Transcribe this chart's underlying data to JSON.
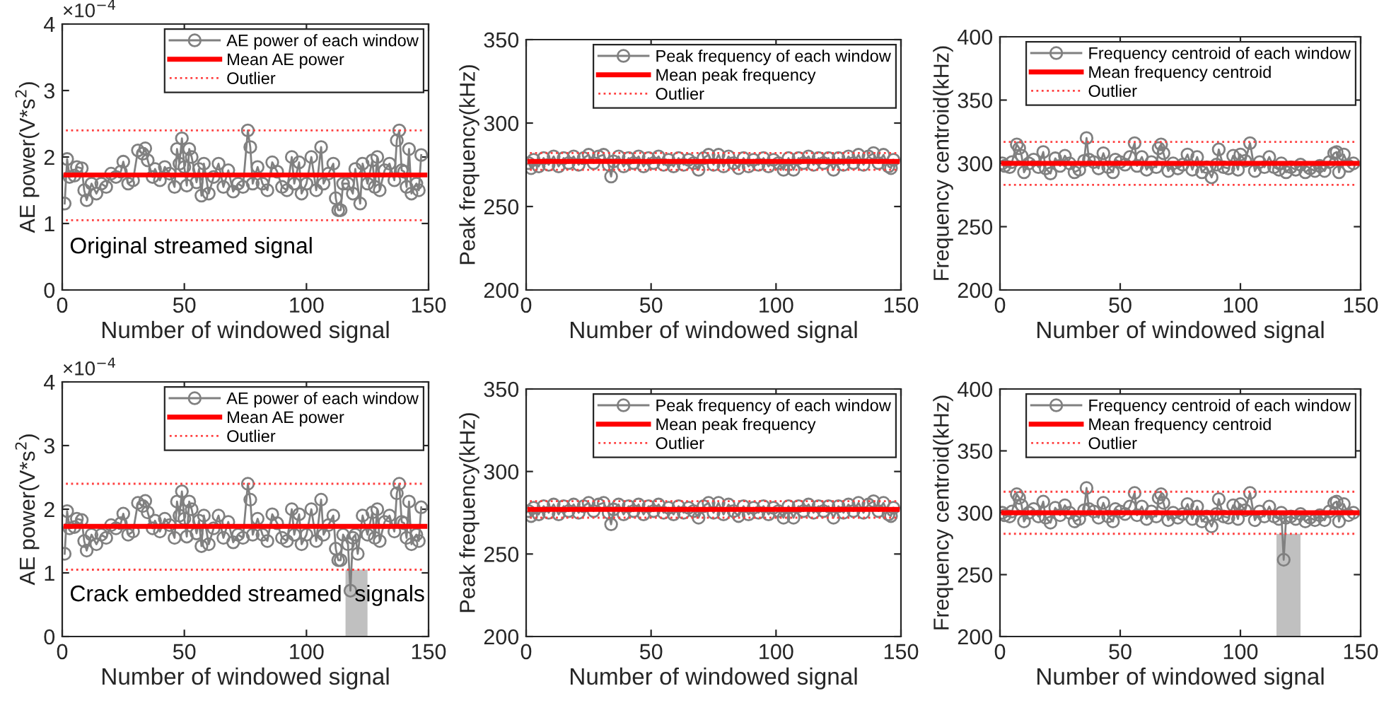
{
  "chart_data": [
    {
      "type": "line",
      "xlabel": "Number of windowed signal",
      "ylabel": "AE power(V*s$^{2}$)",
      "xlim": [
        0,
        150
      ],
      "xticks": [
        0,
        50,
        100,
        150
      ],
      "ylim": [
        0,
        4
      ],
      "yticks": [
        0,
        1,
        2,
        3,
        4
      ],
      "legend": "top right",
      "marker": "circle",
      "line_style": "solid",
      "grid": false,
      "annotations": [
        "×10$^{−4}$",
        "Original streamed signal"
      ],
      "series": [
        {
          "name": "AE power of each window",
          "color": "#808080",
          "x": [
            1,
            2,
            3,
            5,
            6,
            8,
            9,
            10,
            12,
            14,
            16,
            18,
            20,
            22,
            24,
            25,
            27,
            29,
            31,
            33,
            34,
            35,
            37,
            38,
            40,
            42,
            44,
            46,
            47,
            48,
            49,
            50,
            51,
            52,
            53,
            55,
            56,
            57,
            58,
            60,
            62,
            64,
            66,
            68,
            70,
            72,
            74,
            76,
            77,
            78,
            80,
            82,
            84,
            86,
            88,
            90,
            92,
            94,
            95,
            97,
            98,
            100,
            102,
            104,
            106,
            107,
            109,
            111,
            112,
            113,
            114,
            115,
            117,
            119,
            120,
            122,
            123,
            125,
            127,
            128,
            129,
            130,
            132,
            134,
            136,
            137,
            138,
            139,
            140,
            141,
            142,
            143,
            145,
            146,
            147
          ],
          "values": [
            1.3,
            1.97,
            1.7,
            1.72,
            1.85,
            1.83,
            1.5,
            1.35,
            1.6,
            1.45,
            1.6,
            1.55,
            1.75,
            1.7,
            1.78,
            1.93,
            1.6,
            1.65,
            2.1,
            2.05,
            2.13,
            1.95,
            1.7,
            1.82,
            1.65,
            1.85,
            1.75,
            1.55,
            2.12,
            1.9,
            2.28,
            1.85,
            1.57,
            2.12,
            2.0,
            1.62,
            1.82,
            1.42,
            1.9,
            1.45,
            1.7,
            1.9,
            1.55,
            1.8,
            1.48,
            1.6,
            1.55,
            2.4,
            2.15,
            1.6,
            1.85,
            1.6,
            1.5,
            1.92,
            1.78,
            1.55,
            1.5,
            2.0,
            1.6,
            1.92,
            1.45,
            1.6,
            2.0,
            1.5,
            2.15,
            1.6,
            1.75,
            1.9,
            1.38,
            1.2,
            1.2,
            1.6,
            1.6,
            1.45,
            1.82,
            1.3,
            1.9,
            1.6,
            1.95,
            1.55,
            2.0,
            1.5,
            1.8,
            1.9,
            1.65,
            2.25,
            2.4,
            1.8,
            1.78,
            1.55,
            2.12,
            1.45,
            1.6,
            1.5,
            2.03
          ]
        }
      ],
      "ref_lines": [
        {
          "axis": "y",
          "value": 1.73,
          "label": "Mean AE power",
          "color": "#ff0000",
          "line_style": "solid"
        },
        {
          "axis": "y",
          "value": 2.4,
          "label": "Outlier",
          "color": "#ff4040",
          "line_style": "dotted"
        },
        {
          "axis": "y",
          "value": 1.05,
          "color": "#ff4040",
          "line_style": "dotted"
        }
      ]
    },
    {
      "type": "line",
      "xlabel": "Number of windowed signal",
      "ylabel": "Peak frequency(kHz)",
      "xlim": [
        0,
        150
      ],
      "xticks": [
        0,
        50,
        100,
        150
      ],
      "ylim": [
        200,
        350
      ],
      "yticks": [
        200,
        250,
        300,
        350
      ],
      "legend": "top right",
      "marker": "circle",
      "line_style": "solid",
      "grid": false,
      "series": [
        {
          "name": "Peak frequency of each window",
          "color": "#808080",
          "x": [
            1,
            2,
            3,
            5,
            7,
            9,
            11,
            13,
            15,
            17,
            19,
            21,
            23,
            25,
            27,
            29,
            31,
            33,
            34,
            35,
            37,
            39,
            41,
            43,
            45,
            47,
            49,
            51,
            53,
            55,
            57,
            59,
            61,
            63,
            65,
            67,
            69,
            71,
            73,
            75,
            77,
            79,
            81,
            83,
            85,
            87,
            89,
            91,
            93,
            95,
            97,
            99,
            101,
            103,
            105,
            107,
            109,
            111,
            113,
            115,
            117,
            119,
            121,
            123,
            125,
            127,
            129,
            131,
            133,
            135,
            137,
            139,
            141,
            143,
            145,
            146,
            147
          ],
          "values": [
            276,
            273,
            278,
            274,
            279,
            275,
            280,
            274,
            279,
            276,
            280,
            275,
            279,
            281,
            276,
            280,
            281,
            275,
            268,
            277,
            280,
            274,
            279,
            276,
            280,
            274,
            279,
            276,
            280,
            275,
            278,
            274,
            279,
            275,
            278,
            276,
            272,
            279,
            281,
            275,
            281,
            274,
            280,
            276,
            273,
            279,
            274,
            278,
            275,
            279,
            274,
            278,
            276,
            272,
            279,
            272,
            279,
            276,
            280,
            275,
            279,
            276,
            279,
            272,
            279,
            275,
            280,
            276,
            281,
            275,
            280,
            282,
            276,
            281,
            274,
            273,
            278
          ]
        }
      ],
      "ref_lines": [
        {
          "axis": "y",
          "value": 277,
          "label": "Mean peak frequency",
          "color": "#ff0000",
          "line_style": "solid"
        },
        {
          "axis": "y",
          "value": 282,
          "label": "Outlier",
          "color": "#ff4040",
          "line_style": "dotted"
        },
        {
          "axis": "y",
          "value": 272,
          "color": "#ff4040",
          "line_style": "dotted"
        }
      ]
    },
    {
      "type": "line",
      "xlabel": "Number of windowed signal",
      "ylabel": "Frequency centroid(kHz)",
      "xlim": [
        0,
        150
      ],
      "xticks": [
        0,
        50,
        100,
        150
      ],
      "ylim": [
        200,
        400
      ],
      "yticks": [
        200,
        250,
        300,
        350,
        400
      ],
      "legend": "top right",
      "marker": "circle",
      "line_style": "solid",
      "grid": false,
      "series": [
        {
          "name": "Frequency centroid of each window",
          "color": "#808080",
          "x": [
            1,
            2,
            4,
            5,
            7,
            8,
            9,
            10,
            12,
            14,
            16,
            18,
            19,
            21,
            23,
            25,
            27,
            29,
            31,
            33,
            35,
            36,
            37,
            39,
            41,
            43,
            45,
            47,
            48,
            50,
            52,
            54,
            56,
            57,
            59,
            61,
            63,
            65,
            66,
            67,
            68,
            70,
            72,
            74,
            76,
            78,
            80,
            82,
            84,
            86,
            88,
            90,
            91,
            93,
            95,
            97,
            99,
            100,
            102,
            104,
            106,
            108,
            110,
            112,
            114,
            116,
            117,
            119,
            121,
            123,
            125,
            127,
            129,
            131,
            133,
            135,
            137,
            139,
            140,
            141,
            143,
            145,
            147
          ],
          "values": [
            300,
            298,
            297,
            301,
            315,
            312,
            306,
            293,
            300,
            303,
            297,
            309,
            296,
            292,
            304,
            298,
            306,
            300,
            293,
            295,
            302,
            320,
            303,
            301,
            296,
            308,
            297,
            293,
            303,
            301,
            299,
            305,
            316,
            298,
            305,
            295,
            301,
            297,
            312,
            315,
            308,
            294,
            300,
            296,
            299,
            307,
            295,
            305,
            293,
            297,
            289,
            299,
            311,
            297,
            296,
            306,
            295,
            307,
            302,
            316,
            294,
            301,
            297,
            305,
            297,
            295,
            300,
            293,
            297,
            295,
            299,
            293,
            296,
            294,
            298,
            294,
            301,
            308,
            309,
            293,
            307,
            298,
            300
          ]
        }
      ],
      "ref_lines": [
        {
          "axis": "y",
          "value": 300,
          "label": "Mean frequency centroid",
          "color": "#ff0000",
          "line_style": "solid"
        },
        {
          "axis": "y",
          "value": 317,
          "label": "Outlier",
          "color": "#ff4040",
          "line_style": "dotted"
        },
        {
          "axis": "y",
          "value": 283,
          "color": "#ff4040",
          "line_style": "dotted"
        }
      ]
    },
    {
      "type": "line",
      "xlabel": "Number of windowed signal",
      "ylabel": "AE power(V*s$^{2}$)",
      "xlim": [
        0,
        150
      ],
      "xticks": [
        0,
        50,
        100,
        150
      ],
      "ylim": [
        0,
        4
      ],
      "yticks": [
        0,
        1,
        2,
        3,
        4
      ],
      "legend": "top right",
      "marker": "circle",
      "line_style": "solid",
      "grid": false,
      "annotations": [
        "×10$^{−4}$",
        "Crack embedded streamed  signals"
      ],
      "bands": [
        {
          "axis": "x",
          "from": 116,
          "to": 125,
          "color": "#c0c0c0"
        }
      ],
      "series": [
        {
          "name": "AE power of each window",
          "color": "#808080",
          "x": [
            1,
            2,
            3,
            5,
            6,
            8,
            9,
            10,
            12,
            14,
            16,
            18,
            20,
            22,
            24,
            25,
            27,
            29,
            31,
            33,
            34,
            35,
            37,
            38,
            40,
            42,
            44,
            46,
            47,
            48,
            49,
            50,
            51,
            52,
            53,
            55,
            56,
            57,
            58,
            60,
            62,
            64,
            66,
            68,
            70,
            72,
            74,
            76,
            77,
            78,
            80,
            82,
            84,
            86,
            88,
            90,
            92,
            94,
            95,
            97,
            98,
            100,
            102,
            104,
            106,
            107,
            109,
            111,
            112,
            113,
            114,
            115,
            117,
            118,
            119,
            120,
            121,
            123,
            125,
            127,
            128,
            129,
            130,
            132,
            134,
            136,
            137,
            138,
            139,
            140,
            141,
            142,
            143,
            145,
            146,
            147
          ],
          "values": [
            1.3,
            1.97,
            1.7,
            1.72,
            1.85,
            1.83,
            1.5,
            1.35,
            1.6,
            1.45,
            1.6,
            1.55,
            1.75,
            1.7,
            1.78,
            1.93,
            1.6,
            1.65,
            2.1,
            2.05,
            2.13,
            1.95,
            1.7,
            1.82,
            1.65,
            1.85,
            1.75,
            1.55,
            2.12,
            1.9,
            2.28,
            1.85,
            1.57,
            2.12,
            2.0,
            1.62,
            1.82,
            1.42,
            1.9,
            1.45,
            1.7,
            1.9,
            1.55,
            1.8,
            1.48,
            1.6,
            1.55,
            2.4,
            2.15,
            1.6,
            1.85,
            1.6,
            1.5,
            1.92,
            1.78,
            1.55,
            1.5,
            2.0,
            1.6,
            1.92,
            1.45,
            1.6,
            2.0,
            1.5,
            2.15,
            1.6,
            1.75,
            1.9,
            1.38,
            1.2,
            1.2,
            1.6,
            1.45,
            0.72,
            1.55,
            1.6,
            1.3,
            1.9,
            1.6,
            1.95,
            1.55,
            2.0,
            1.5,
            1.8,
            1.9,
            1.65,
            2.25,
            2.4,
            1.8,
            1.78,
            1.55,
            2.12,
            1.45,
            1.6,
            1.5,
            2.03
          ]
        }
      ],
      "ref_lines": [
        {
          "axis": "y",
          "value": 1.73,
          "label": "Mean AE power",
          "color": "#ff0000",
          "line_style": "solid"
        },
        {
          "axis": "y",
          "value": 2.4,
          "label": "Outlier",
          "color": "#ff4040",
          "line_style": "dotted"
        },
        {
          "axis": "y",
          "value": 1.05,
          "color": "#ff4040",
          "line_style": "dotted"
        }
      ]
    },
    {
      "type": "line",
      "xlabel": "Number of windowed signal",
      "ylabel": "Peak frequency(kHz)",
      "xlim": [
        0,
        150
      ],
      "xticks": [
        0,
        50,
        100,
        150
      ],
      "ylim": [
        200,
        350
      ],
      "yticks": [
        200,
        250,
        300,
        350
      ],
      "legend": "top right",
      "marker": "circle",
      "line_style": "solid",
      "grid": false,
      "series": [
        {
          "name": "Peak frequency of each window",
          "color": "#808080",
          "x": [
            1,
            2,
            3,
            5,
            7,
            9,
            11,
            13,
            15,
            17,
            19,
            21,
            23,
            25,
            27,
            29,
            31,
            33,
            34,
            35,
            37,
            39,
            41,
            43,
            45,
            47,
            49,
            51,
            53,
            55,
            57,
            59,
            61,
            63,
            65,
            67,
            69,
            71,
            73,
            75,
            77,
            79,
            81,
            83,
            85,
            87,
            89,
            91,
            93,
            95,
            97,
            99,
            101,
            103,
            105,
            107,
            109,
            111,
            113,
            115,
            117,
            119,
            121,
            123,
            125,
            127,
            129,
            131,
            133,
            135,
            137,
            139,
            141,
            143,
            145,
            146,
            147
          ],
          "values": [
            276,
            273,
            278,
            274,
            279,
            275,
            280,
            274,
            279,
            276,
            280,
            275,
            279,
            281,
            276,
            280,
            281,
            275,
            268,
            277,
            280,
            274,
            279,
            276,
            280,
            274,
            279,
            276,
            280,
            275,
            278,
            274,
            279,
            275,
            278,
            276,
            272,
            279,
            281,
            275,
            281,
            274,
            280,
            276,
            273,
            279,
            274,
            278,
            275,
            279,
            274,
            278,
            276,
            272,
            279,
            272,
            279,
            276,
            280,
            275,
            279,
            276,
            279,
            272,
            279,
            275,
            280,
            276,
            281,
            275,
            280,
            282,
            276,
            281,
            274,
            273,
            278
          ]
        }
      ],
      "ref_lines": [
        {
          "axis": "y",
          "value": 277,
          "label": "Mean peak frequency",
          "color": "#ff0000",
          "line_style": "solid"
        },
        {
          "axis": "y",
          "value": 282,
          "label": "Outlier",
          "color": "#ff4040",
          "line_style": "dotted"
        },
        {
          "axis": "y",
          "value": 272,
          "color": "#ff4040",
          "line_style": "dotted"
        }
      ]
    },
    {
      "type": "line",
      "xlabel": "Number of windowed signal",
      "ylabel": "Frequency centroid(kHz)",
      "xlim": [
        0,
        150
      ],
      "xticks": [
        0,
        50,
        100,
        150
      ],
      "ylim": [
        200,
        400
      ],
      "yticks": [
        200,
        250,
        300,
        350,
        400
      ],
      "legend": "top right",
      "marker": "circle",
      "line_style": "solid",
      "grid": false,
      "bands": [
        {
          "axis": "x",
          "from": 115,
          "to": 125,
          "color": "#c0c0c0"
        }
      ],
      "series": [
        {
          "name": "Frequency centroid of each window",
          "color": "#808080",
          "x": [
            1,
            2,
            4,
            5,
            7,
            8,
            9,
            10,
            12,
            14,
            16,
            18,
            19,
            21,
            23,
            25,
            27,
            29,
            31,
            33,
            35,
            36,
            37,
            39,
            41,
            43,
            45,
            47,
            48,
            50,
            52,
            54,
            56,
            57,
            59,
            61,
            63,
            65,
            66,
            67,
            68,
            70,
            72,
            74,
            76,
            78,
            80,
            82,
            84,
            86,
            88,
            90,
            91,
            93,
            95,
            97,
            99,
            100,
            102,
            104,
            106,
            108,
            110,
            112,
            114,
            116,
            117,
            118,
            119,
            121,
            123,
            125,
            127,
            129,
            131,
            133,
            135,
            137,
            139,
            140,
            141,
            143,
            145,
            147
          ],
          "values": [
            300,
            298,
            297,
            301,
            315,
            312,
            306,
            293,
            300,
            303,
            297,
            309,
            296,
            292,
            304,
            298,
            306,
            300,
            293,
            295,
            302,
            320,
            303,
            301,
            296,
            308,
            297,
            293,
            303,
            301,
            299,
            305,
            316,
            298,
            305,
            295,
            301,
            297,
            312,
            315,
            308,
            294,
            300,
            296,
            299,
            307,
            295,
            305,
            293,
            297,
            289,
            299,
            311,
            297,
            296,
            306,
            295,
            307,
            302,
            316,
            294,
            301,
            297,
            305,
            297,
            295,
            300,
            262,
            296,
            297,
            295,
            299,
            293,
            296,
            294,
            298,
            294,
            301,
            308,
            309,
            293,
            307,
            298,
            300
          ]
        }
      ],
      "ref_lines": [
        {
          "axis": "y",
          "value": 300,
          "label": "Mean frequency centroid",
          "color": "#ff0000",
          "line_style": "solid"
        },
        {
          "axis": "y",
          "value": 317,
          "label": "Outlier",
          "color": "#ff4040",
          "line_style": "dotted"
        },
        {
          "axis": "y",
          "value": 283,
          "color": "#ff4040",
          "line_style": "dotted"
        }
      ]
    }
  ]
}
